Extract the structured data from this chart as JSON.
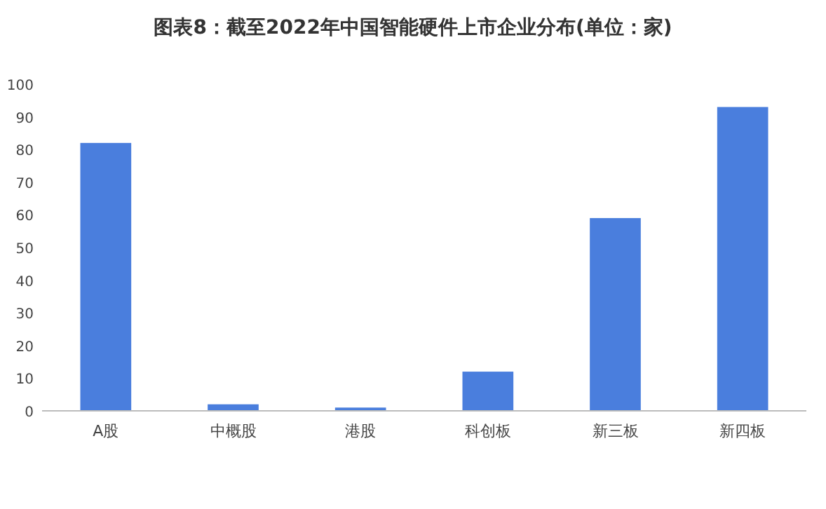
{
  "chart_data": {
    "type": "bar",
    "title": "图表8：截至2022年中国智能硬件上市企业分布(单位：家)",
    "categories": [
      "A股",
      "中概股",
      "港股",
      "科创板",
      "新三板",
      "新四板"
    ],
    "values": [
      82,
      2,
      1,
      12,
      59,
      93
    ],
    "color": "#4a7edd",
    "ylim": [
      0,
      100
    ],
    "yticks": [
      0,
      10,
      20,
      30,
      40,
      50,
      60,
      70,
      80,
      90,
      100
    ]
  }
}
